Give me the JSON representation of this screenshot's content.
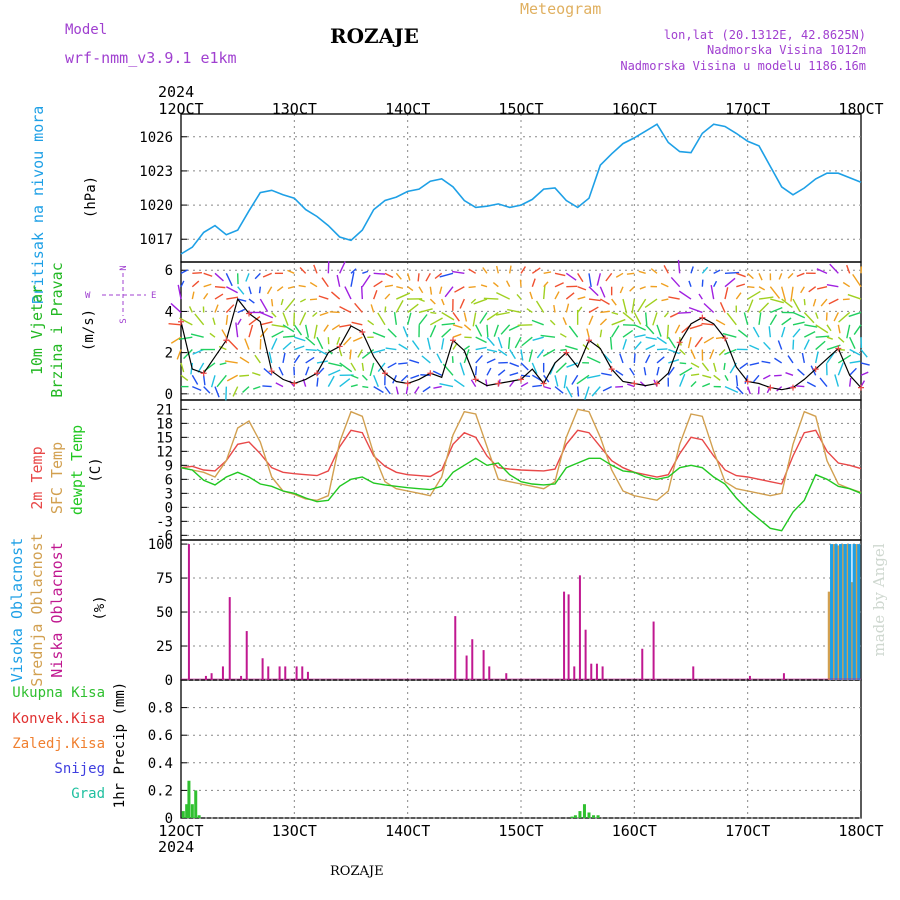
{
  "header": {
    "model_label": "Model",
    "model_name": "wrf-nmm_v3.9.1 e1km",
    "station": "ROZAJE",
    "meteogram_label": "Meteogram",
    "lonlat": "lon,lat (20.1312E, 42.8625N)",
    "elevation": "Nadmorska Visina 1012m",
    "model_elevation": "Nadmorska Visina u modelu 1186.16m",
    "footer_station": "ROZAJE",
    "credit": "made by Angel"
  },
  "colors": {
    "pressure": "#1ea0e6",
    "wind_label": "#22b822",
    "temp2m": "#e84848",
    "sfc_temp": "#d2a050",
    "dewpt": "#22c822",
    "high_cloud": "#1ea0e6",
    "mid_cloud": "#d2a050",
    "low_cloud": "#c01890",
    "model": "#a040d0",
    "meteogram": "#e0b060",
    "rain_total": "#30c030",
    "rain_conv": "#e03030",
    "rain_frozen": "#f08030",
    "snow": "#4040e0",
    "graupel": "#20c0a0"
  },
  "time_axis": {
    "year": "2024",
    "ticks": [
      "12OCT",
      "13OCT",
      "14OCT",
      "15OCT",
      "16OCT",
      "17OCT",
      "18OCT"
    ],
    "start": "12OCT",
    "end": "18OCT"
  },
  "panels": {
    "pressure": {
      "label": "Pritisak na nivou mora",
      "unit": "(hPa)"
    },
    "wind": {
      "label1": "10m Vjetar",
      "label2": "Brzina i Pravac",
      "unit": "(m/s)",
      "compass_n": "N",
      "compass_s": "S",
      "compass_w": "W",
      "compass_e": "E"
    },
    "temp": {
      "label1": "2m Temp",
      "label2": "SFC Temp",
      "label3": "dewpt Temp",
      "unit": "(C)"
    },
    "cloud": {
      "label1": "Visoka Oblacnost",
      "label2": "Srednja Oblacnost",
      "label3": "Niska Oblacnost",
      "unit": "(%)"
    },
    "precip": {
      "legend": [
        "Ukupna Kisa",
        "Konvek.Kisa",
        "Zaledj.Kisa",
        "Snijeg",
        "Grad"
      ],
      "unit": "1hr Precip (mm)"
    }
  },
  "chart_data": [
    {
      "type": "line",
      "name": "pressure",
      "x_days": [
        0,
        0.1,
        0.2,
        0.3,
        0.4,
        0.5,
        0.6,
        0.7,
        0.8,
        0.9,
        1.0,
        1.1,
        1.2,
        1.3,
        1.4,
        1.5,
        1.6,
        1.7,
        1.8,
        1.9,
        2.0,
        2.1,
        2.2,
        2.3,
        2.4,
        2.5,
        2.6,
        2.7,
        2.8,
        2.9,
        3.0,
        3.1,
        3.2,
        3.3,
        3.4,
        3.5,
        3.6,
        3.7,
        3.8,
        3.9,
        4.0,
        4.1,
        4.2,
        4.3,
        4.4,
        4.5,
        4.6,
        4.7,
        4.8,
        4.9,
        5.0,
        5.1,
        5.2,
        5.3,
        5.4,
        5.5,
        5.6,
        5.7,
        5.8,
        5.9,
        6.0
      ],
      "values": [
        1015.7,
        1016.3,
        1017.6,
        1018.2,
        1017.4,
        1017.8,
        1019.5,
        1021.1,
        1021.3,
        1020.9,
        1020.6,
        1019.6,
        1019.0,
        1018.2,
        1017.2,
        1016.9,
        1017.8,
        1019.6,
        1020.4,
        1020.7,
        1021.2,
        1021.4,
        1022.1,
        1022.3,
        1021.6,
        1020.4,
        1019.8,
        1019.9,
        1020.1,
        1019.8,
        1020.0,
        1020.5,
        1021.4,
        1021.5,
        1020.4,
        1019.8,
        1020.6,
        1023.5,
        1024.5,
        1025.4,
        1025.9,
        1026.5,
        1027.1,
        1025.5,
        1024.7,
        1024.6,
        1026.3,
        1027.1,
        1026.9,
        1026.3,
        1025.6,
        1025.2,
        1023.4,
        1021.6,
        1020.9,
        1021.5,
        1022.3,
        1022.8,
        1022.8,
        1022.4,
        1022.0
      ],
      "ylabel": "(hPa)",
      "ylim": [
        1015,
        1028
      ],
      "yticks": [
        1017,
        1020,
        1023,
        1026
      ],
      "grid": true
    },
    {
      "type": "line",
      "name": "wind_speed",
      "x_days": [
        0,
        0.1,
        0.2,
        0.3,
        0.4,
        0.5,
        0.6,
        0.7,
        0.8,
        0.9,
        1.0,
        1.1,
        1.2,
        1.3,
        1.4,
        1.5,
        1.6,
        1.7,
        1.8,
        1.9,
        2.0,
        2.1,
        2.2,
        2.3,
        2.4,
        2.5,
        2.6,
        2.7,
        2.8,
        2.9,
        3.0,
        3.1,
        3.2,
        3.3,
        3.4,
        3.5,
        3.6,
        3.7,
        3.8,
        3.9,
        4.0,
        4.1,
        4.2,
        4.3,
        4.4,
        4.5,
        4.6,
        4.7,
        4.8,
        4.9,
        5.0,
        5.1,
        5.2,
        5.3,
        5.4,
        5.5,
        5.6,
        5.7,
        5.8,
        5.9,
        6.0
      ],
      "values": [
        3.5,
        1.2,
        1.0,
        1.8,
        2.6,
        4.6,
        3.9,
        3.5,
        1.1,
        0.7,
        0.5,
        0.7,
        1.0,
        2.0,
        2.3,
        3.3,
        3.0,
        1.8,
        1.0,
        0.6,
        0.5,
        0.7,
        1.0,
        0.8,
        2.6,
        2.1,
        0.7,
        0.4,
        0.5,
        0.6,
        0.7,
        1.2,
        0.5,
        1.5,
        2.0,
        1.3,
        2.6,
        2.2,
        1.2,
        0.6,
        0.5,
        0.4,
        0.5,
        1.0,
        2.5,
        3.4,
        3.7,
        3.4,
        2.7,
        1.3,
        0.6,
        0.5,
        0.3,
        0.2,
        0.3,
        0.7,
        1.2,
        1.7,
        2.2,
        0.9,
        0.3
      ],
      "ylabel": "(m/s)",
      "ylim": [
        -0.3,
        6.4
      ],
      "yticks": [
        0,
        2,
        4,
        6
      ],
      "grid": true
    },
    {
      "type": "line",
      "name": "temperature",
      "x_days": [
        0,
        0.1,
        0.2,
        0.3,
        0.4,
        0.5,
        0.6,
        0.7,
        0.8,
        0.9,
        1.0,
        1.1,
        1.2,
        1.3,
        1.4,
        1.5,
        1.6,
        1.7,
        1.8,
        1.9,
        2.0,
        2.1,
        2.2,
        2.3,
        2.4,
        2.5,
        2.6,
        2.7,
        2.8,
        2.9,
        3.0,
        3.1,
        3.2,
        3.3,
        3.4,
        3.5,
        3.6,
        3.7,
        3.8,
        3.9,
        4.0,
        4.1,
        4.2,
        4.3,
        4.4,
        4.5,
        4.6,
        4.7,
        4.8,
        4.9,
        5.0,
        5.1,
        5.2,
        5.3,
        5.4,
        5.5,
        5.6,
        5.7,
        5.8,
        5.9,
        6.0
      ],
      "series": [
        {
          "name": "2m Temp",
          "values": [
            8.5,
            8.8,
            8.0,
            7.8,
            10.0,
            13.5,
            14.0,
            11.5,
            8.5,
            7.5,
            7.2,
            7.0,
            6.8,
            7.8,
            13.0,
            16.5,
            16.0,
            11.0,
            8.8,
            7.5,
            7.0,
            6.8,
            6.6,
            8.0,
            13.5,
            16.0,
            15.0,
            11.0,
            8.5,
            8.2,
            8.0,
            7.9,
            7.8,
            8.2,
            13.5,
            16.5,
            16.0,
            13.0,
            10.0,
            8.5,
            7.5,
            7.0,
            6.5,
            7.0,
            11.5,
            15.0,
            14.5,
            11.0,
            8.0,
            6.8,
            6.5,
            6.0,
            5.5,
            5.0,
            11.0,
            16.0,
            16.5,
            12.0,
            9.5,
            9.0,
            8.3
          ]
        },
        {
          "name": "SFC Temp",
          "values": [
            8.5,
            8.0,
            7.5,
            6.5,
            10.0,
            17.0,
            18.5,
            14.0,
            6.5,
            3.5,
            2.8,
            1.8,
            1.5,
            2.5,
            14.0,
            20.5,
            19.5,
            11.5,
            5.5,
            4.0,
            3.5,
            3.0,
            2.5,
            6.5,
            15.5,
            20.5,
            20.0,
            13.0,
            6.0,
            5.5,
            5.0,
            4.5,
            4.0,
            5.5,
            15.0,
            21.0,
            20.5,
            15.0,
            8.0,
            3.5,
            2.5,
            2.0,
            1.5,
            3.5,
            13.5,
            20.0,
            19.5,
            12.0,
            5.5,
            4.0,
            3.5,
            3.0,
            2.5,
            3.0,
            13.5,
            20.5,
            19.5,
            10.0,
            5.0,
            4.0,
            3.2
          ]
        },
        {
          "name": "dewpt Temp",
          "values": [
            8.5,
            8.0,
            5.8,
            4.8,
            6.5,
            7.5,
            6.5,
            5.0,
            4.5,
            3.5,
            3.0,
            2.0,
            1.2,
            1.5,
            4.5,
            6.0,
            6.5,
            5.2,
            4.8,
            4.5,
            4.2,
            4.0,
            3.8,
            4.5,
            7.5,
            9.0,
            10.5,
            9.0,
            9.5,
            7.0,
            5.5,
            5.0,
            4.8,
            5.0,
            8.5,
            9.5,
            10.5,
            10.5,
            9.0,
            7.8,
            7.5,
            6.5,
            6.0,
            6.5,
            8.5,
            9.0,
            8.5,
            6.5,
            5.0,
            2.0,
            -0.5,
            -2.5,
            -4.5,
            -5.0,
            -1.0,
            1.5,
            7.0,
            6.0,
            4.5,
            4.0,
            3.0
          ]
        }
      ],
      "ylabel": "(C)",
      "ylim": [
        -7,
        23
      ],
      "yticks": [
        -6,
        -3,
        0,
        3,
        6,
        9,
        12,
        15,
        18,
        21
      ],
      "grid": true
    },
    {
      "type": "bar",
      "name": "cloud_cover",
      "series": [
        {
          "name": "Niska Oblacnost",
          "x_days": [
            0.07,
            0.22,
            0.27,
            0.37,
            0.43,
            0.53,
            0.58,
            0.72,
            0.77,
            0.87,
            0.92,
            1.02,
            1.07,
            1.12,
            2.42,
            2.52,
            2.57,
            2.67,
            2.72,
            2.87,
            3.38,
            3.42,
            3.47,
            3.52,
            3.57,
            3.62,
            3.67,
            3.72,
            4.07,
            4.17,
            4.52,
            5.02,
            5.32
          ],
          "values": [
            100,
            3,
            5,
            10,
            61,
            3,
            36,
            16,
            10,
            10,
            10,
            10,
            10,
            6,
            47,
            18,
            30,
            22,
            10,
            5,
            65,
            63,
            10,
            77,
            37,
            12,
            12,
            10,
            23,
            43,
            10,
            3,
            5
          ]
        },
        {
          "name": "Srednja Oblacnost",
          "x_days": [
            5.72,
            5.76,
            5.8,
            5.84,
            5.88,
            5.92,
            5.96
          ],
          "values": [
            65,
            100,
            99,
            100,
            100,
            72,
            100
          ]
        },
        {
          "name": "Visoka Oblacnost",
          "x_days": [
            5.74,
            5.78,
            5.82,
            5.86,
            5.9,
            5.94,
            5.98,
            5.78,
            5.82,
            5.86,
            5.9,
            5.94
          ],
          "values": [
            100,
            100,
            100,
            100,
            100,
            100,
            100,
            100,
            100,
            100,
            100,
            100
          ]
        }
      ],
      "ylabel": "(%)",
      "ylim": [
        0,
        103
      ],
      "yticks": [
        0,
        25,
        50,
        75,
        100
      ],
      "grid": true
    },
    {
      "type": "bar",
      "name": "precipitation",
      "series": [
        {
          "name": "Ukupna Kisa",
          "x_days": [
            0.02,
            0.05,
            0.07,
            0.1,
            0.13,
            0.16,
            3.45,
            3.48,
            3.52,
            3.56,
            3.6,
            3.64,
            3.68
          ],
          "values": [
            0.05,
            0.1,
            0.27,
            0.1,
            0.2,
            0.02,
            0.01,
            0.02,
            0.05,
            0.1,
            0.04,
            0.02,
            0.02
          ]
        },
        {
          "name": "Konvek.Kisa",
          "x_days": [],
          "values": []
        },
        {
          "name": "Zaledj.Kisa",
          "x_days": [],
          "values": []
        },
        {
          "name": "Snijeg",
          "x_days": [],
          "values": []
        },
        {
          "name": "Grad",
          "x_days": [],
          "values": []
        }
      ],
      "ylabel": "1hr Precip (mm)",
      "ylim": [
        0,
        1.0
      ],
      "yticks": [
        0,
        0.2,
        0.4,
        0.6,
        0.8
      ],
      "grid": true
    }
  ]
}
